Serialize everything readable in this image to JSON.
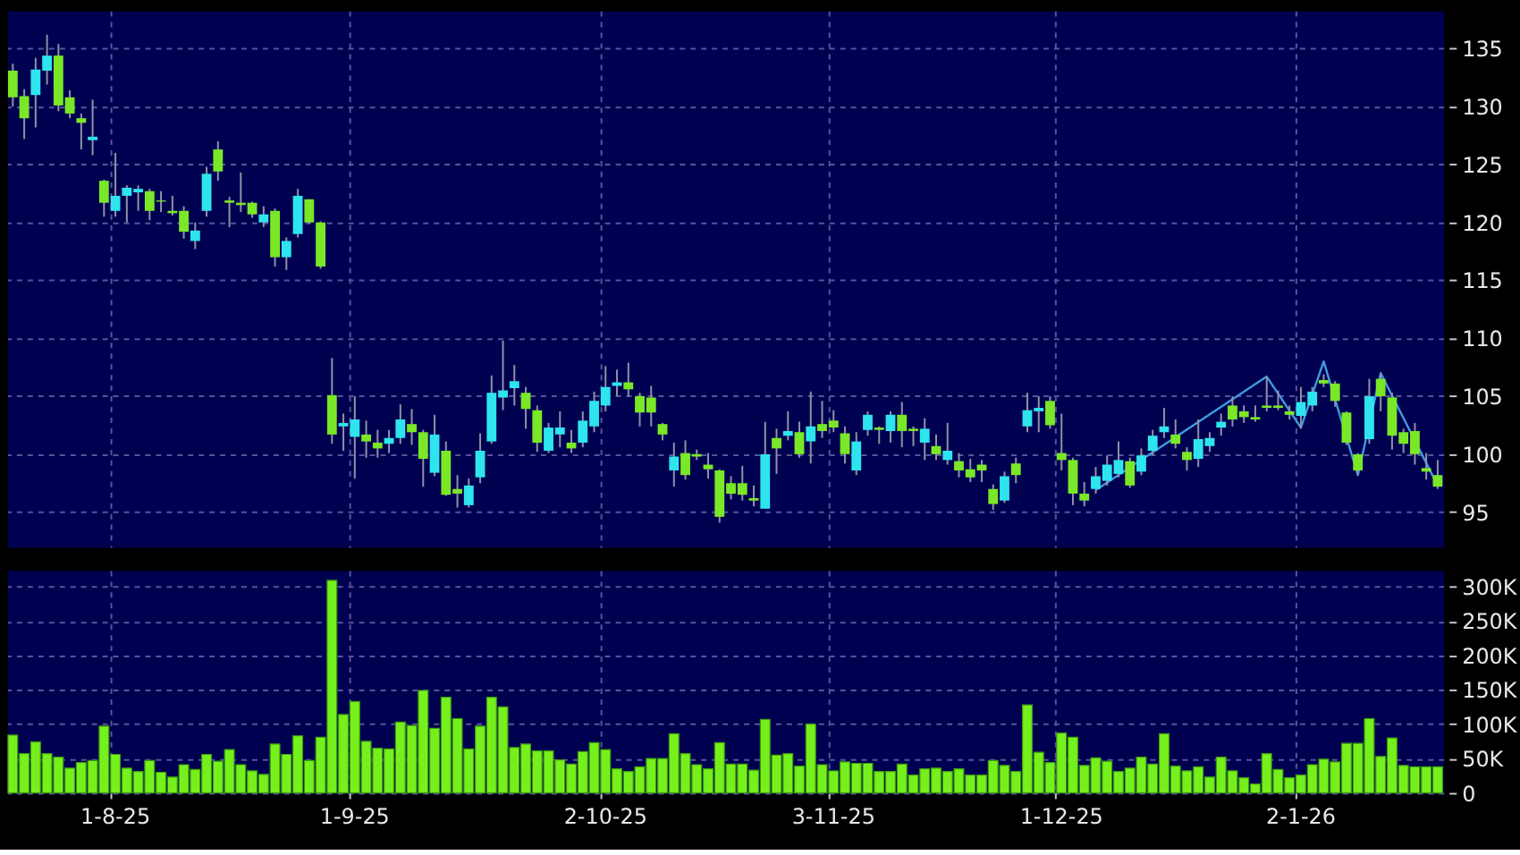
{
  "chart_data": [
    {
      "type": "candlestick",
      "categories": [
        null,
        null,
        null,
        null,
        null,
        null,
        null,
        null,
        null,
        null,
        null,
        null,
        null,
        null,
        null,
        null,
        null,
        null,
        null,
        null,
        null,
        null,
        null,
        null,
        null,
        null,
        null,
        null,
        null,
        null,
        null,
        null,
        null,
        null,
        null,
        null,
        null,
        null,
        null,
        null,
        null,
        null,
        null,
        null,
        null,
        null,
        null,
        null,
        null,
        null,
        null,
        null,
        null,
        null,
        null,
        null,
        null,
        null,
        null,
        null,
        null,
        null,
        null,
        null,
        null,
        null,
        null,
        null,
        null,
        null,
        null,
        null,
        null,
        null,
        null,
        null,
        null,
        null,
        null,
        null,
        null,
        null,
        null,
        null,
        null,
        null,
        null,
        null,
        null,
        null,
        null,
        null,
        null,
        null,
        null,
        null,
        null,
        null,
        null,
        null,
        null,
        null,
        null,
        null,
        null,
        null,
        null,
        null,
        null,
        null,
        null,
        null,
        null,
        null,
        null,
        null,
        null,
        null,
        null,
        null,
        null,
        null,
        null,
        null,
        null,
        null
      ],
      "series": [
        {
          "type": "line",
          "color": "#3f9be0",
          "line_style": "solid",
          "values": [
            null,
            null,
            null,
            null,
            null,
            null,
            null,
            null,
            null,
            null,
            null,
            null,
            null,
            null,
            null,
            null,
            null,
            null,
            null,
            null,
            null,
            null,
            null,
            null,
            null,
            null,
            null,
            null,
            null,
            null,
            null,
            null,
            null,
            null,
            null,
            null,
            null,
            null,
            null,
            null,
            null,
            null,
            null,
            null,
            null,
            null,
            null,
            null,
            null,
            null,
            null,
            null,
            null,
            null,
            null,
            null,
            null,
            null,
            null,
            null,
            null,
            null,
            null,
            null,
            null,
            null,
            null,
            null,
            null,
            null,
            null,
            null,
            null,
            null,
            null,
            null,
            null,
            null,
            null,
            null,
            null,
            null,
            null,
            null,
            null,
            null,
            null,
            null,
            null,
            null,
            null,
            null,
            null,
            null,
            null,
            96.9,
            null,
            null,
            null,
            null,
            null,
            null,
            null,
            null,
            null,
            null,
            null,
            null,
            null,
            null,
            106.7,
            null,
            null,
            102.3,
            null,
            108.0,
            null,
            null,
            98.2,
            null,
            107.0,
            null,
            null,
            null,
            null,
            97.3
          ]
        },
        {
          "type": "candlestick",
          "ohlc": [
            [
              133.1,
              133.7,
              130.0,
              130.8
            ],
            [
              130.9,
              131.5,
              127.2,
              129.0
            ],
            [
              131.0,
              134.2,
              128.2,
              133.2
            ],
            [
              133.1,
              136.2,
              131.9,
              134.4
            ],
            [
              134.4,
              135.4,
              129.6,
              130.1
            ],
            [
              130.8,
              131.4,
              129.0,
              129.4
            ],
            [
              129.0,
              129.4,
              126.3,
              128.6
            ],
            [
              127.1,
              130.6,
              125.8,
              127.4
            ],
            [
              123.6,
              123.7,
              120.5,
              121.7
            ],
            [
              121.0,
              126.0,
              120.5,
              122.3
            ],
            [
              122.3,
              123.2,
              120.0,
              123.0
            ],
            [
              122.6,
              123.2,
              121.0,
              122.9
            ],
            [
              122.7,
              122.9,
              120.2,
              121.0
            ],
            [
              121.9,
              122.7,
              120.9,
              121.8
            ],
            [
              121.0,
              122.3,
              120.6,
              120.8
            ],
            [
              121.0,
              121.4,
              118.6,
              119.2
            ],
            [
              118.4,
              120.0,
              117.7,
              119.3
            ],
            [
              121.0,
              124.8,
              120.5,
              124.2
            ],
            [
              126.3,
              127.0,
              123.6,
              124.4
            ],
            [
              121.9,
              122.2,
              119.6,
              121.7
            ],
            [
              121.7,
              124.3,
              120.9,
              121.5
            ],
            [
              121.7,
              121.8,
              120.4,
              120.7
            ],
            [
              120.0,
              121.4,
              119.6,
              120.7
            ],
            [
              121.0,
              121.2,
              116.2,
              117.0
            ],
            [
              117.0,
              118.7,
              115.9,
              118.4
            ],
            [
              119.0,
              122.9,
              118.7,
              122.3
            ],
            [
              122.0,
              122.0,
              119.9,
              120.0
            ],
            [
              120.0,
              120.1,
              116.0,
              116.2
            ],
            [
              105.1,
              108.3,
              100.9,
              101.7
            ],
            [
              102.4,
              103.5,
              100.3,
              102.7
            ],
            [
              101.5,
              105.0,
              97.9,
              103.0
            ],
            [
              101.7,
              102.9,
              99.7,
              101.1
            ],
            [
              101.0,
              102.1,
              99.7,
              100.5
            ],
            [
              100.9,
              102.1,
              100.1,
              101.4
            ],
            [
              101.4,
              104.3,
              100.9,
              103.0
            ],
            [
              102.6,
              103.9,
              100.8,
              101.9
            ],
            [
              101.9,
              102.1,
              97.2,
              99.6
            ],
            [
              98.4,
              103.4,
              98.1,
              101.7
            ],
            [
              100.3,
              101.1,
              96.4,
              96.5
            ],
            [
              97.0,
              98.2,
              95.4,
              96.6
            ],
            [
              95.6,
              97.9,
              95.4,
              97.3
            ],
            [
              98.0,
              101.8,
              97.5,
              100.3
            ],
            [
              101.1,
              106.8,
              100.9,
              105.3
            ],
            [
              104.9,
              109.8,
              103.8,
              105.5
            ],
            [
              105.7,
              107.7,
              104.2,
              106.3
            ],
            [
              105.3,
              105.8,
              102.2,
              103.9
            ],
            [
              103.8,
              104.2,
              100.2,
              101.0
            ],
            [
              100.3,
              102.7,
              100.1,
              102.3
            ],
            [
              101.7,
              103.7,
              100.6,
              102.3
            ],
            [
              101.0,
              102.1,
              100.1,
              100.5
            ],
            [
              101.0,
              103.7,
              100.6,
              102.9
            ],
            [
              102.4,
              105.4,
              101.9,
              104.6
            ],
            [
              104.2,
              107.6,
              103.7,
              105.8
            ],
            [
              105.9,
              107.3,
              105.0,
              106.2
            ],
            [
              106.2,
              107.9,
              105.0,
              105.6
            ],
            [
              105.0,
              105.3,
              102.4,
              103.6
            ],
            [
              104.9,
              105.9,
              102.4,
              103.6
            ],
            [
              102.6,
              102.7,
              101.2,
              101.7
            ],
            [
              98.6,
              101.0,
              97.2,
              99.8
            ],
            [
              100.1,
              101.2,
              97.8,
              98.2
            ],
            [
              100.0,
              100.4,
              99.5,
              99.8
            ],
            [
              99.1,
              100.1,
              97.9,
              98.7
            ],
            [
              98.6,
              98.7,
              94.1,
              94.6
            ],
            [
              97.5,
              98.1,
              96.1,
              96.6
            ],
            [
              97.5,
              99.0,
              96.0,
              96.5
            ],
            [
              96.2,
              97.3,
              95.5,
              96.0
            ],
            [
              95.3,
              102.8,
              95.3,
              100.0
            ],
            [
              101.4,
              102.2,
              98.3,
              100.5
            ],
            [
              101.6,
              103.7,
              101.2,
              102.0
            ],
            [
              101.9,
              102.8,
              99.7,
              100.0
            ],
            [
              101.1,
              105.4,
              99.2,
              102.4
            ],
            [
              102.6,
              104.6,
              101.4,
              102.0
            ],
            [
              102.9,
              103.8,
              101.9,
              102.3
            ],
            [
              101.8,
              102.4,
              99.2,
              100.0
            ],
            [
              98.6,
              101.9,
              98.2,
              101.1
            ],
            [
              102.1,
              103.7,
              101.6,
              103.4
            ],
            [
              102.3,
              102.4,
              100.9,
              102.1
            ],
            [
              102.0,
              103.7,
              101.0,
              103.4
            ],
            [
              103.4,
              104.5,
              100.6,
              102.0
            ],
            [
              102.2,
              102.4,
              100.7,
              102.0
            ],
            [
              101.0,
              103.1,
              99.5,
              102.2
            ],
            [
              100.7,
              101.7,
              99.5,
              100.0
            ],
            [
              99.5,
              102.7,
              99.1,
              100.3
            ],
            [
              99.4,
              100.1,
              98.0,
              98.6
            ],
            [
              98.7,
              99.6,
              97.6,
              98.0
            ],
            [
              99.1,
              99.5,
              97.6,
              98.6
            ],
            [
              97.0,
              97.4,
              95.2,
              95.7
            ],
            [
              96.0,
              98.5,
              95.8,
              98.1
            ],
            [
              99.2,
              99.7,
              97.5,
              98.2
            ],
            [
              102.4,
              105.3,
              101.9,
              103.8
            ],
            [
              103.7,
              105.0,
              101.9,
              104.0
            ],
            [
              104.6,
              105.0,
              102.2,
              102.5
            ],
            [
              100.1,
              103.5,
              98.6,
              99.5
            ],
            [
              99.5,
              99.7,
              95.6,
              96.6
            ],
            [
              96.6,
              97.6,
              95.5,
              96.0
            ],
            [
              97.0,
              98.9,
              96.6,
              98.1
            ],
            [
              97.7,
              99.9,
              97.3,
              99.1
            ],
            [
              98.3,
              101.1,
              98.0,
              99.5
            ],
            [
              99.4,
              99.7,
              97.1,
              97.3
            ],
            [
              98.5,
              100.5,
              98.2,
              99.9
            ],
            [
              100.3,
              102.1,
              99.9,
              101.6
            ],
            [
              101.9,
              104.0,
              101.4,
              102.4
            ],
            [
              101.7,
              103.0,
              100.5,
              100.9
            ],
            [
              100.2,
              100.6,
              98.6,
              99.5
            ],
            [
              99.6,
              103.0,
              98.9,
              101.3
            ],
            [
              100.7,
              101.9,
              100.2,
              101.4
            ],
            [
              102.3,
              103.5,
              101.6,
              102.8
            ],
            [
              104.2,
              105.0,
              102.4,
              103.0
            ],
            [
              103.7,
              104.2,
              102.7,
              103.2
            ],
            [
              103.2,
              104.2,
              102.8,
              103.0
            ],
            [
              104.2,
              106.7,
              103.7,
              104.0
            ],
            [
              104.2,
              105.5,
              103.8,
              104.0
            ],
            [
              103.7,
              104.2,
              103.0,
              103.4
            ],
            [
              103.3,
              105.8,
              102.2,
              104.5
            ],
            [
              104.2,
              105.8,
              103.7,
              105.4
            ],
            [
              106.4,
              106.9,
              105.8,
              106.1
            ],
            [
              106.1,
              106.3,
              104.1,
              104.6
            ],
            [
              103.6,
              103.7,
              100.8,
              101.0
            ],
            [
              100.0,
              100.1,
              98.2,
              98.6
            ],
            [
              101.3,
              106.5,
              100.9,
              105.0
            ],
            [
              106.5,
              107.0,
              103.7,
              105.0
            ],
            [
              104.9,
              105.3,
              100.4,
              101.6
            ],
            [
              101.9,
              102.2,
              100.1,
              100.9
            ],
            [
              102.0,
              102.7,
              99.1,
              100.0
            ],
            [
              98.8,
              100.1,
              97.8,
              98.5
            ],
            [
              98.2,
              99.5,
              97.0,
              97.2
            ]
          ],
          "colors": [
            "#7ae826",
            "#7ae826",
            "#2ee4ee",
            "#2ee4ee",
            "#7ae826",
            "#7ae826",
            "#7ae826",
            "#2ee4ee",
            "#7ae826",
            "#2ee4ee",
            "#2ee4ee",
            "#2ee4ee",
            "#7ae826",
            "#7ae826",
            "#7ae826",
            "#7ae826",
            "#2ee4ee",
            "#2ee4ee",
            "#7ae826",
            "#7ae826",
            "#7ae826",
            "#7ae826",
            "#2ee4ee",
            "#7ae826",
            "#2ee4ee",
            "#2ee4ee",
            "#7ae826",
            "#7ae826",
            "#7ae826",
            "#2ee4ee",
            "#2ee4ee",
            "#7ae826",
            "#7ae826",
            "#2ee4ee",
            "#2ee4ee",
            "#7ae826",
            "#7ae826",
            "#2ee4ee",
            "#7ae826",
            "#7ae826",
            "#2ee4ee",
            "#2ee4ee",
            "#2ee4ee",
            "#2ee4ee",
            "#2ee4ee",
            "#7ae826",
            "#7ae826",
            "#2ee4ee",
            "#2ee4ee",
            "#7ae826",
            "#2ee4ee",
            "#2ee4ee",
            "#2ee4ee",
            "#2ee4ee",
            "#7ae826",
            "#7ae826",
            "#7ae826",
            "#7ae826",
            "#2ee4ee",
            "#7ae826",
            "#7ae826",
            "#7ae826",
            "#7ae826",
            "#7ae826",
            "#7ae826",
            "#7ae826",
            "#2ee4ee",
            "#7ae826",
            "#2ee4ee",
            "#7ae826",
            "#2ee4ee",
            "#7ae826",
            "#7ae826",
            "#7ae826",
            "#2ee4ee",
            "#2ee4ee",
            "#7ae826",
            "#2ee4ee",
            "#7ae826",
            "#7ae826",
            "#2ee4ee",
            "#7ae826",
            "#2ee4ee",
            "#7ae826",
            "#7ae826",
            "#7ae826",
            "#7ae826",
            "#2ee4ee",
            "#7ae826",
            "#2ee4ee",
            "#2ee4ee",
            "#7ae826",
            "#7ae826",
            "#7ae826",
            "#7ae826",
            "#2ee4ee",
            "#2ee4ee",
            "#2ee4ee",
            "#7ae826",
            "#2ee4ee",
            "#2ee4ee",
            "#2ee4ee",
            "#7ae826",
            "#7ae826",
            "#2ee4ee",
            "#2ee4ee",
            "#2ee4ee",
            "#7ae826",
            "#7ae826",
            "#7ae826",
            "#7ae826",
            "#7ae826",
            "#7ae826",
            "#2ee4ee",
            "#2ee4ee",
            "#7ae826",
            "#7ae826",
            "#7ae826",
            "#7ae826",
            "#2ee4ee",
            "#7ae826",
            "#7ae826",
            "#7ae826",
            "#7ae826",
            "#7ae826",
            "#7ae826"
          ]
        }
      ],
      "ylim": [
        92.0,
        138.3
      ],
      "yticks": [
        95,
        100,
        105,
        110,
        115,
        120,
        125,
        130,
        135
      ],
      "grid": true,
      "tick_labels": "y"
    },
    {
      "type": "bar",
      "categories": [
        null,
        null,
        null,
        null,
        null,
        null,
        null,
        null,
        null,
        "1-8-25",
        null,
        null,
        null,
        null,
        null,
        null,
        null,
        null,
        null,
        null,
        null,
        null,
        null,
        null,
        null,
        null,
        null,
        null,
        null,
        null,
        "1-9-25",
        null,
        null,
        null,
        null,
        null,
        null,
        null,
        null,
        null,
        null,
        null,
        null,
        null,
        null,
        null,
        null,
        null,
        null,
        null,
        null,
        null,
        "2-10-25",
        null,
        null,
        null,
        null,
        null,
        null,
        null,
        null,
        null,
        null,
        null,
        null,
        null,
        null,
        null,
        null,
        null,
        null,
        null,
        "3-11-25",
        null,
        null,
        null,
        null,
        null,
        null,
        null,
        null,
        null,
        null,
        null,
        null,
        null,
        null,
        null,
        null,
        null,
        null,
        null,
        "1-12-25",
        null,
        null,
        null,
        null,
        null,
        null,
        null,
        null,
        null,
        null,
        null,
        null,
        null,
        null,
        null,
        null,
        null,
        null,
        null,
        null,
        "2-1-26",
        null,
        null,
        null,
        null,
        null,
        null,
        null,
        null,
        null,
        null,
        null,
        null
      ],
      "values": [
        84000,
        57000,
        74000,
        57000,
        52000,
        36000,
        44000,
        47000,
        97000,
        56000,
        36000,
        31000,
        47000,
        30000,
        23000,
        41000,
        34000,
        56000,
        46000,
        63000,
        41000,
        32000,
        27000,
        71000,
        56000,
        83000,
        47000,
        81000,
        309000,
        114000,
        133000,
        75000,
        65000,
        64000,
        103000,
        98000,
        149000,
        94000,
        139000,
        108000,
        64000,
        97000,
        139000,
        125000,
        66000,
        71000,
        61000,
        61000,
        48000,
        42000,
        60000,
        73000,
        63000,
        35000,
        31000,
        38000,
        50000,
        50000,
        86000,
        57000,
        41000,
        35000,
        73000,
        42000,
        42000,
        33000,
        107000,
        55000,
        57000,
        39000,
        100000,
        41000,
        32000,
        45000,
        43000,
        43000,
        31000,
        31000,
        42000,
        26000,
        35000,
        36000,
        31000,
        35000,
        26000,
        26000,
        47000,
        40000,
        31000,
        128000,
        59000,
        44000,
        87000,
        81000,
        40000,
        51000,
        46000,
        31000,
        36000,
        52000,
        42000,
        86000,
        39000,
        32000,
        38000,
        23000,
        52000,
        32000,
        22000,
        13000,
        57000,
        34000,
        22000,
        26000,
        41000,
        49000,
        45000,
        72000,
        72000,
        108000,
        53000,
        80000,
        40000,
        38000,
        38000,
        38000
      ],
      "color": "#76f01c",
      "ylim": [
        0,
        324000
      ],
      "yticks": [
        0,
        {
          "value": 50000,
          "label": "50K"
        },
        {
          "value": 100000,
          "label": "100K"
        },
        {
          "value": 150000,
          "label": "150K"
        },
        {
          "value": 200000,
          "label": "200K"
        },
        {
          "value": 250000,
          "label": "250K"
        },
        {
          "value": 300000,
          "label": "300K"
        }
      ],
      "grid": true
    }
  ]
}
